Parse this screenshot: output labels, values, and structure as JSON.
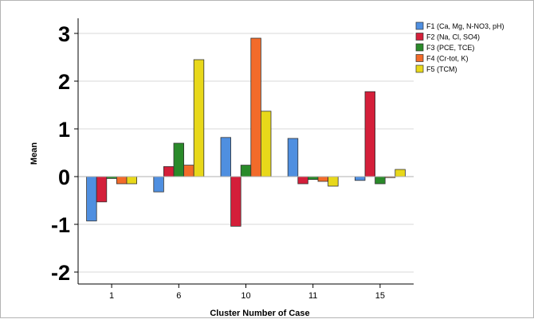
{
  "chart_data": {
    "type": "bar",
    "title": "",
    "xlabel": "Cluster Number of Case",
    "ylabel": "Mean",
    "categories": [
      "1",
      "6",
      "10",
      "11",
      "15"
    ],
    "yticks": [
      3,
      2,
      1,
      0,
      -1,
      -2
    ],
    "ytick_labels": [
      "3",
      "2",
      "1",
      "0",
      "-1",
      "-2"
    ],
    "ylim": [
      -2.3,
      3.3
    ],
    "grid": true,
    "legend_position": "top-right",
    "series": [
      {
        "name": "F1 (Ca, Mg, N-NO3, pH)",
        "color": "#4f8fe0",
        "values": [
          -0.93,
          -0.32,
          0.82,
          0.8,
          -0.08
        ]
      },
      {
        "name": "F2 (Na, Cl, SO4)",
        "color": "#d41f3a",
        "values": [
          -0.53,
          0.21,
          -1.04,
          -0.15,
          1.78
        ]
      },
      {
        "name": "F3 (PCE, TCE)",
        "color": "#2a8a2a",
        "values": [
          -0.04,
          0.7,
          0.24,
          -0.06,
          -0.15
        ]
      },
      {
        "name": "F4 (Cr-tot, K)",
        "color": "#f26b2a",
        "values": [
          -0.15,
          0.24,
          2.9,
          -0.1,
          -0.02
        ]
      },
      {
        "name": "F5 (TCM)",
        "color": "#e8d81a",
        "values": [
          -0.15,
          2.45,
          1.37,
          -0.2,
          0.15
        ]
      }
    ]
  }
}
